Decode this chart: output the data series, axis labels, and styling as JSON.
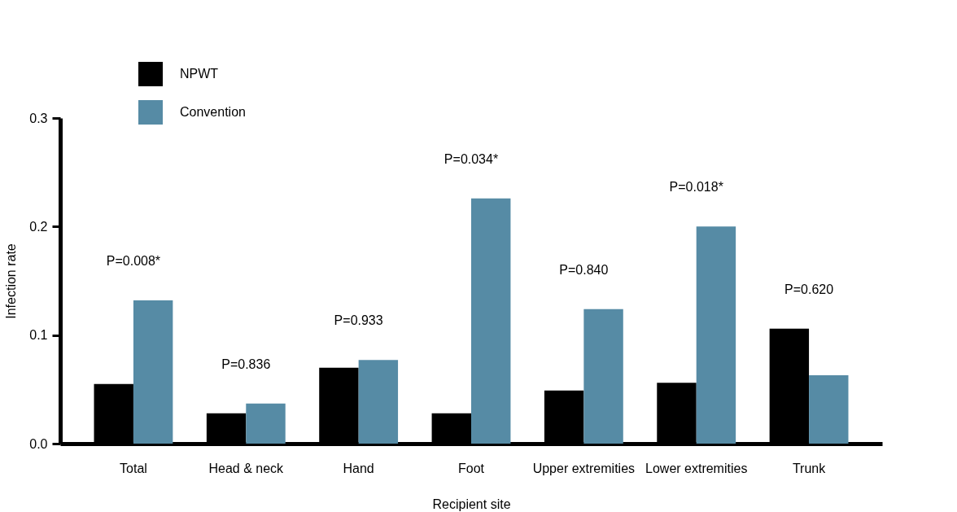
{
  "chart_data": {
    "type": "bar",
    "xlabel": "Recipient site",
    "ylabel": "Infection rate",
    "categories": [
      "Total",
      "Head & neck",
      "Hand",
      "Foot",
      "Upper extremities",
      "Lower extremities",
      "Trunk"
    ],
    "series": [
      {
        "name": "NPWT",
        "color": "#000000",
        "values": [
          0.055,
          0.028,
          0.07,
          0.028,
          0.049,
          0.056,
          0.106
        ]
      },
      {
        "name": "Convention",
        "color": "#568ba5",
        "values": [
          0.132,
          0.037,
          0.077,
          0.226,
          0.124,
          0.2,
          0.063
        ]
      }
    ],
    "ylim": [
      0,
      0.3
    ],
    "yticks": [
      {
        "value": 0,
        "label": "0.0"
      },
      0.1,
      0.2,
      0.3
    ],
    "grid": false,
    "legend": "top left",
    "annotations": [
      "P=0.008*",
      "P=0.836",
      "P=0.933",
      "P=0.034*",
      "P=0.840",
      "P=0.018*",
      "P=0.620"
    ]
  }
}
